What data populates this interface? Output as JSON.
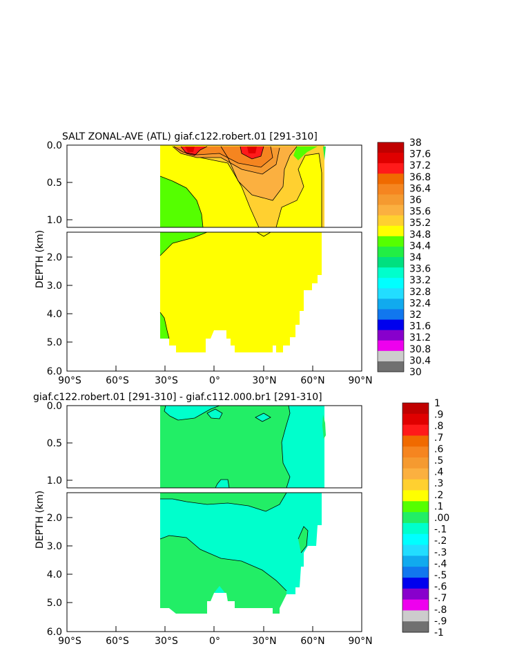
{
  "chart_data": [
    {
      "type": "contour",
      "title": "SALT ZONAL-AVE (ATL) giaf.c122.robert.01 [291-310]",
      "ylabel": "DEPTH (km)",
      "xlim": [
        -90,
        90
      ],
      "xticks": [
        -90,
        -60,
        -30,
        0,
        30,
        60,
        90
      ],
      "xtick_labels": [
        "90°S",
        "60°S",
        "30°S",
        "0°",
        "30°N",
        "60°N",
        "90°N"
      ],
      "ylim": [
        0,
        6
      ],
      "yticks_upper": [
        0.0,
        0.5,
        1.0
      ],
      "ytick_labels_upper": [
        "0.0",
        "0.5",
        "1.0"
      ],
      "yticks_lower": [
        2.0,
        3.0,
        4.0,
        5.0,
        6.0
      ],
      "ytick_labels_lower": [
        "2.0",
        "3.0",
        "4.0",
        "5.0",
        "6.0"
      ],
      "colorbar_labels": [
        "38",
        "37.6",
        "37.2",
        "36.8",
        "36.4",
        "36",
        "35.6",
        "35.2",
        "34.8",
        "34.4",
        "34",
        "33.6",
        "33.2",
        "32.8",
        "32.4",
        "32",
        "31.6",
        "31.2",
        "30.8",
        "30.4",
        "30"
      ],
      "colorbar_colors": [
        "#c00000",
        "#e00000",
        "#ff1a1a",
        "#f06a00",
        "#f58520",
        "#f59a30",
        "#fbb040",
        "#ffd030",
        "#ffff00",
        "#55ff00",
        "#22ee44",
        "#00e080",
        "#00ffcc",
        "#00ffff",
        "#22ddff",
        "#11aaee",
        "#1177ee",
        "#0000ee",
        "#8800cc",
        "#ee00ee",
        "#cccccc",
        "#707070"
      ],
      "colors": {
        "fresh_water": "#55ff00",
        "main_water": "#ffff00",
        "saline_35_6": "#ffd030",
        "saline_36": "#fbb040",
        "saline_36_4": "#f59a30",
        "saline_36_8": "#f58520",
        "saline_37_2": "#ff1a1a",
        "saline_37_6": "#e00000"
      }
    },
    {
      "type": "contour",
      "title": "giaf.c122.robert.01 [291-310] - giaf.c112.000.br1 [291-310]",
      "ylabel": "DEPTH (km)",
      "xlim": [
        -90,
        90
      ],
      "xticks": [
        -90,
        -60,
        -30,
        0,
        30,
        60,
        90
      ],
      "xtick_labels": [
        "90°S",
        "60°S",
        "30°S",
        "0°",
        "30°N",
        "60°N",
        "90°N"
      ],
      "ylim": [
        0,
        6
      ],
      "yticks_upper": [
        0.0,
        0.5,
        1.0
      ],
      "ytick_labels_upper": [
        "0.0",
        "0.5",
        "1.0"
      ],
      "yticks_lower": [
        2.0,
        3.0,
        4.0,
        5.0,
        6.0
      ],
      "ytick_labels_lower": [
        "2.0",
        "3.0",
        "4.0",
        "5.0",
        "6.0"
      ],
      "colorbar_labels": [
        "1",
        ".9",
        ".8",
        ".7",
        ".6",
        ".5",
        ".4",
        ".3",
        ".2",
        ".1",
        ".00",
        "-.1",
        "-.2",
        "-.3",
        "-.4",
        "-.5",
        "-.6",
        "-.7",
        "-.8",
        "-.9",
        "-1"
      ],
      "colorbar_colors": [
        "#c00000",
        "#e00000",
        "#ff1a1a",
        "#f06a00",
        "#f58520",
        "#f59a30",
        "#fbb040",
        "#ffd030",
        "#ffff00",
        "#55ff00",
        "#22ee66",
        "#00ffcc",
        "#00ffff",
        "#22ddff",
        "#11aaee",
        "#1177ee",
        "#0000ee",
        "#8800cc",
        "#ee00ee",
        "#cccccc",
        "#707070"
      ],
      "colors": {
        "positive_0_1": "#22ee66",
        "negative_0_1": "#00ffcc"
      }
    }
  ]
}
